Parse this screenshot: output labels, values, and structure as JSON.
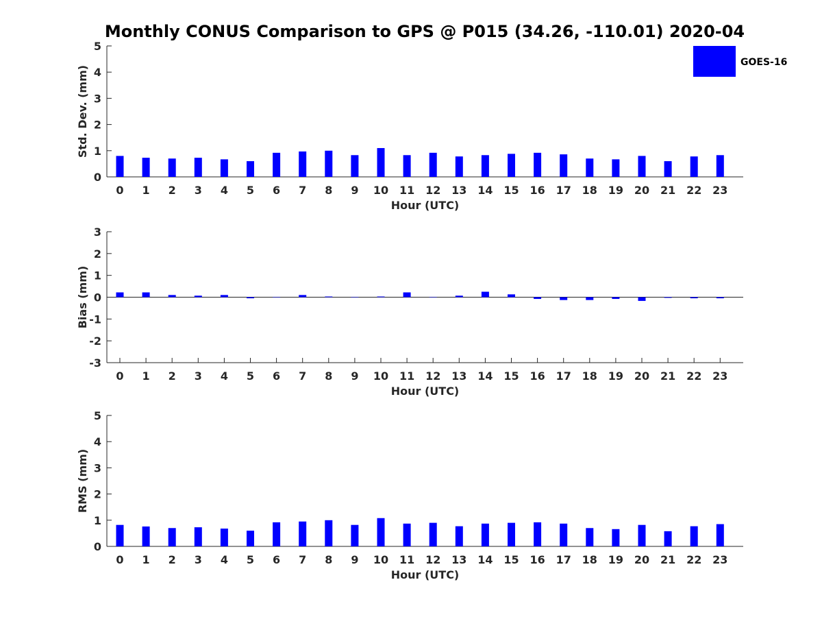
{
  "title": "Monthly CONUS Comparison to GPS @ P015 (34.26, -110.01) 2020-04",
  "legend": {
    "label": "GOES-16",
    "color": "#0000ff",
    "placement": "top-right"
  },
  "chart_data": [
    {
      "type": "bar",
      "name": "std-dev",
      "ylabel": "Std. Dev. (mm)",
      "xlabel": "Hour (UTC)",
      "ylim": [
        0,
        5
      ],
      "yticks": [
        "0",
        "1",
        "2",
        "3",
        "4",
        "5"
      ],
      "categories": [
        "0",
        "1",
        "2",
        "3",
        "4",
        "5",
        "6",
        "7",
        "8",
        "9",
        "10",
        "11",
        "12",
        "13",
        "14",
        "15",
        "16",
        "17",
        "18",
        "19",
        "20",
        "21",
        "22",
        "23"
      ],
      "series": [
        {
          "name": "GOES-16",
          "values": [
            0.8,
            0.73,
            0.7,
            0.73,
            0.67,
            0.6,
            0.92,
            0.97,
            1.0,
            0.83,
            1.1,
            0.83,
            0.92,
            0.78,
            0.83,
            0.88,
            0.92,
            0.86,
            0.7,
            0.67,
            0.8,
            0.6,
            0.78,
            0.83
          ]
        }
      ]
    },
    {
      "type": "bar",
      "name": "bias",
      "ylabel": "Bias (mm)",
      "xlabel": "Hour (UTC)",
      "ylim": [
        -3,
        3
      ],
      "yticks": [
        "-3",
        "-2",
        "-1",
        "0",
        "1",
        "2",
        "3"
      ],
      "categories": [
        "0",
        "1",
        "2",
        "3",
        "4",
        "5",
        "6",
        "7",
        "8",
        "9",
        "10",
        "11",
        "12",
        "13",
        "14",
        "15",
        "16",
        "17",
        "18",
        "19",
        "20",
        "21",
        "22",
        "23"
      ],
      "series": [
        {
          "name": "GOES-16",
          "values": [
            0.22,
            0.22,
            0.1,
            0.07,
            0.1,
            -0.05,
            0.0,
            0.1,
            0.03,
            -0.01,
            0.03,
            0.22,
            -0.01,
            0.07,
            0.25,
            0.13,
            -0.08,
            -0.13,
            -0.13,
            -0.08,
            -0.17,
            -0.03,
            -0.05,
            -0.05
          ]
        }
      ]
    },
    {
      "type": "bar",
      "name": "rms",
      "ylabel": "RMS (mm)",
      "xlabel": "Hour (UTC)",
      "ylim": [
        0,
        5
      ],
      "yticks": [
        "0",
        "1",
        "2",
        "3",
        "4",
        "5"
      ],
      "categories": [
        "0",
        "1",
        "2",
        "3",
        "4",
        "5",
        "6",
        "7",
        "8",
        "9",
        "10",
        "11",
        "12",
        "13",
        "14",
        "15",
        "16",
        "17",
        "18",
        "19",
        "20",
        "21",
        "22",
        "23"
      ],
      "series": [
        {
          "name": "GOES-16",
          "values": [
            0.82,
            0.76,
            0.7,
            0.73,
            0.68,
            0.6,
            0.92,
            0.95,
            1.0,
            0.82,
            1.08,
            0.87,
            0.9,
            0.77,
            0.87,
            0.9,
            0.92,
            0.87,
            0.7,
            0.66,
            0.82,
            0.58,
            0.77,
            0.85
          ]
        }
      ]
    }
  ]
}
